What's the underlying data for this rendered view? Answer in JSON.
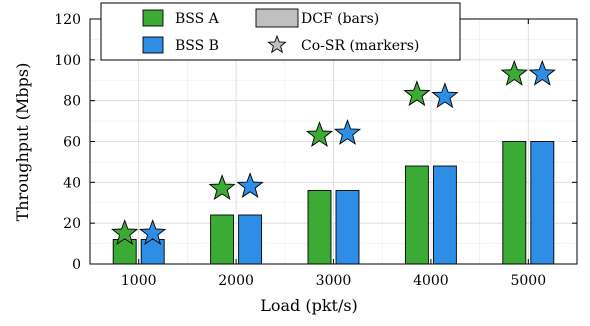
{
  "chart_data": {
    "type": "bar",
    "categories": [
      "1000",
      "2000",
      "3000",
      "4000",
      "5000"
    ],
    "xlabel": "Load (pkt/s)",
    "ylabel": "Throughput (Mbps)",
    "ylim": [
      0,
      120
    ],
    "yticks": [
      "0",
      "20",
      "40",
      "60",
      "80",
      "100",
      "120"
    ],
    "grid": true,
    "legend_position": "top-center",
    "series": [
      {
        "name": "BSS A",
        "method": "DCF (bars)",
        "mark": "bar",
        "color": "#3cab35",
        "values": [
          12,
          24,
          36,
          48,
          60
        ]
      },
      {
        "name": "BSS B",
        "method": "DCF (bars)",
        "mark": "bar",
        "color": "#2e8ee6",
        "values": [
          12,
          24,
          36,
          48,
          60
        ]
      },
      {
        "name": "BSS A",
        "method": "Co-SR (markers)",
        "mark": "star",
        "color": "#3cab35",
        "values": [
          15,
          37,
          63,
          83,
          93
        ]
      },
      {
        "name": "BSS B",
        "method": "Co-SR (markers)",
        "mark": "star",
        "color": "#2e8ee6",
        "values": [
          15,
          38,
          64,
          82,
          93
        ]
      }
    ],
    "legend": [
      {
        "label": "BSS A",
        "swatch": "#3cab35",
        "kind": "rect"
      },
      {
        "label": "DCF (bars)",
        "swatch": "#c0c0c0",
        "kind": "rect"
      },
      {
        "label": "BSS B",
        "swatch": "#2e8ee6",
        "kind": "rect"
      },
      {
        "label": "Co-SR (markers)",
        "swatch": "#c0c0c0",
        "kind": "star"
      }
    ]
  }
}
